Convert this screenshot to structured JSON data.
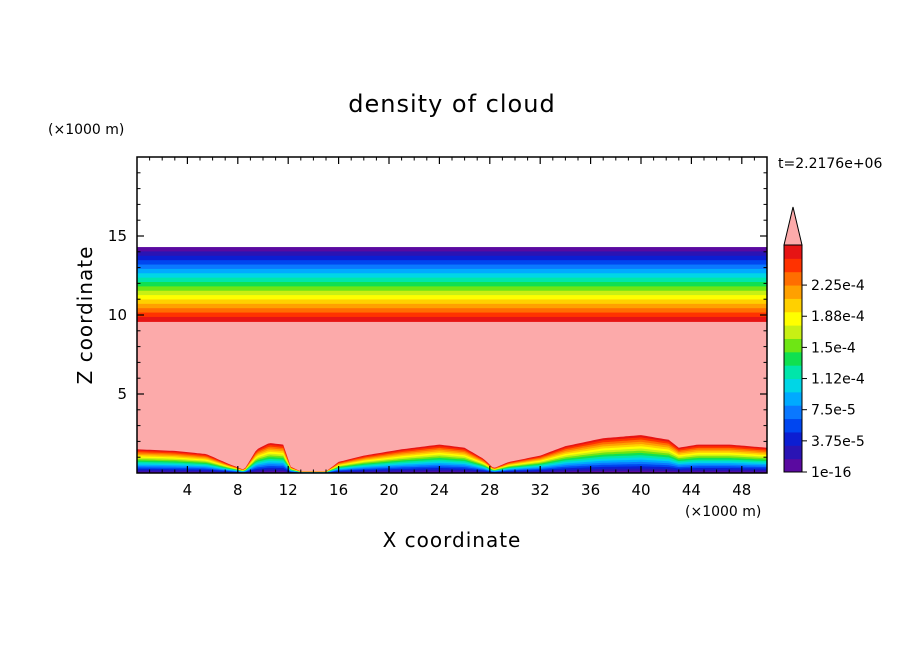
{
  "chart_data": {
    "type": "heatmap",
    "title": "density of cloud",
    "xlabel": "X coordinate",
    "ylabel": "Z coordinate",
    "x_unit": "(×1000 m)",
    "y_unit": "(×1000 m)",
    "time_label": "t=2.2176e+06",
    "xlim": [
      0,
      50
    ],
    "ylim": [
      0,
      20
    ],
    "x_ticks": [
      4,
      8,
      12,
      16,
      20,
      24,
      28,
      32,
      36,
      40,
      44,
      48
    ],
    "y_ticks": [
      5,
      10,
      15
    ],
    "colorbar": {
      "labels": [
        "1e-16",
        "3.75e-5",
        "7.5e-5",
        "1.12e-4",
        "1.5e-4",
        "1.88e-4",
        "2.25e-4"
      ],
      "extend": "max",
      "colors": [
        "#5a0aa0",
        "#2a14b4",
        "#0c1ed2",
        "#0046f0",
        "#0a78ff",
        "#00aaff",
        "#00d6e6",
        "#00e6aa",
        "#10e050",
        "#6ee614",
        "#c8f014",
        "#ffff00",
        "#ffd000",
        "#ffa000",
        "#ff6e00",
        "#ff3200",
        "#e61414"
      ],
      "over_color": "#fcaaaa"
    },
    "layers": {
      "upper_band": {
        "bottom_km": 9.6,
        "top_km": 14.3
      },
      "surface_profile_km": [
        [
          0,
          1.5
        ],
        [
          3,
          1.4
        ],
        [
          5.5,
          1.2
        ],
        [
          7.2,
          0.6
        ],
        [
          8.5,
          0.2
        ],
        [
          9.5,
          1.5
        ],
        [
          10.5,
          1.9
        ],
        [
          11.6,
          1.8
        ],
        [
          12.2,
          0.4
        ],
        [
          13,
          0.1
        ],
        [
          15,
          0.1
        ],
        [
          16,
          0.7
        ],
        [
          18,
          1.1
        ],
        [
          21,
          1.5
        ],
        [
          24,
          1.8
        ],
        [
          26,
          1.6
        ],
        [
          27.5,
          0.9
        ],
        [
          28.3,
          0.3
        ],
        [
          29.5,
          0.7
        ],
        [
          32,
          1.1
        ],
        [
          34,
          1.7
        ],
        [
          37,
          2.2
        ],
        [
          40,
          2.4
        ],
        [
          42.2,
          2.1
        ],
        [
          43,
          1.6
        ],
        [
          44.5,
          1.8
        ],
        [
          47,
          1.8
        ],
        [
          50,
          1.6
        ]
      ]
    }
  }
}
